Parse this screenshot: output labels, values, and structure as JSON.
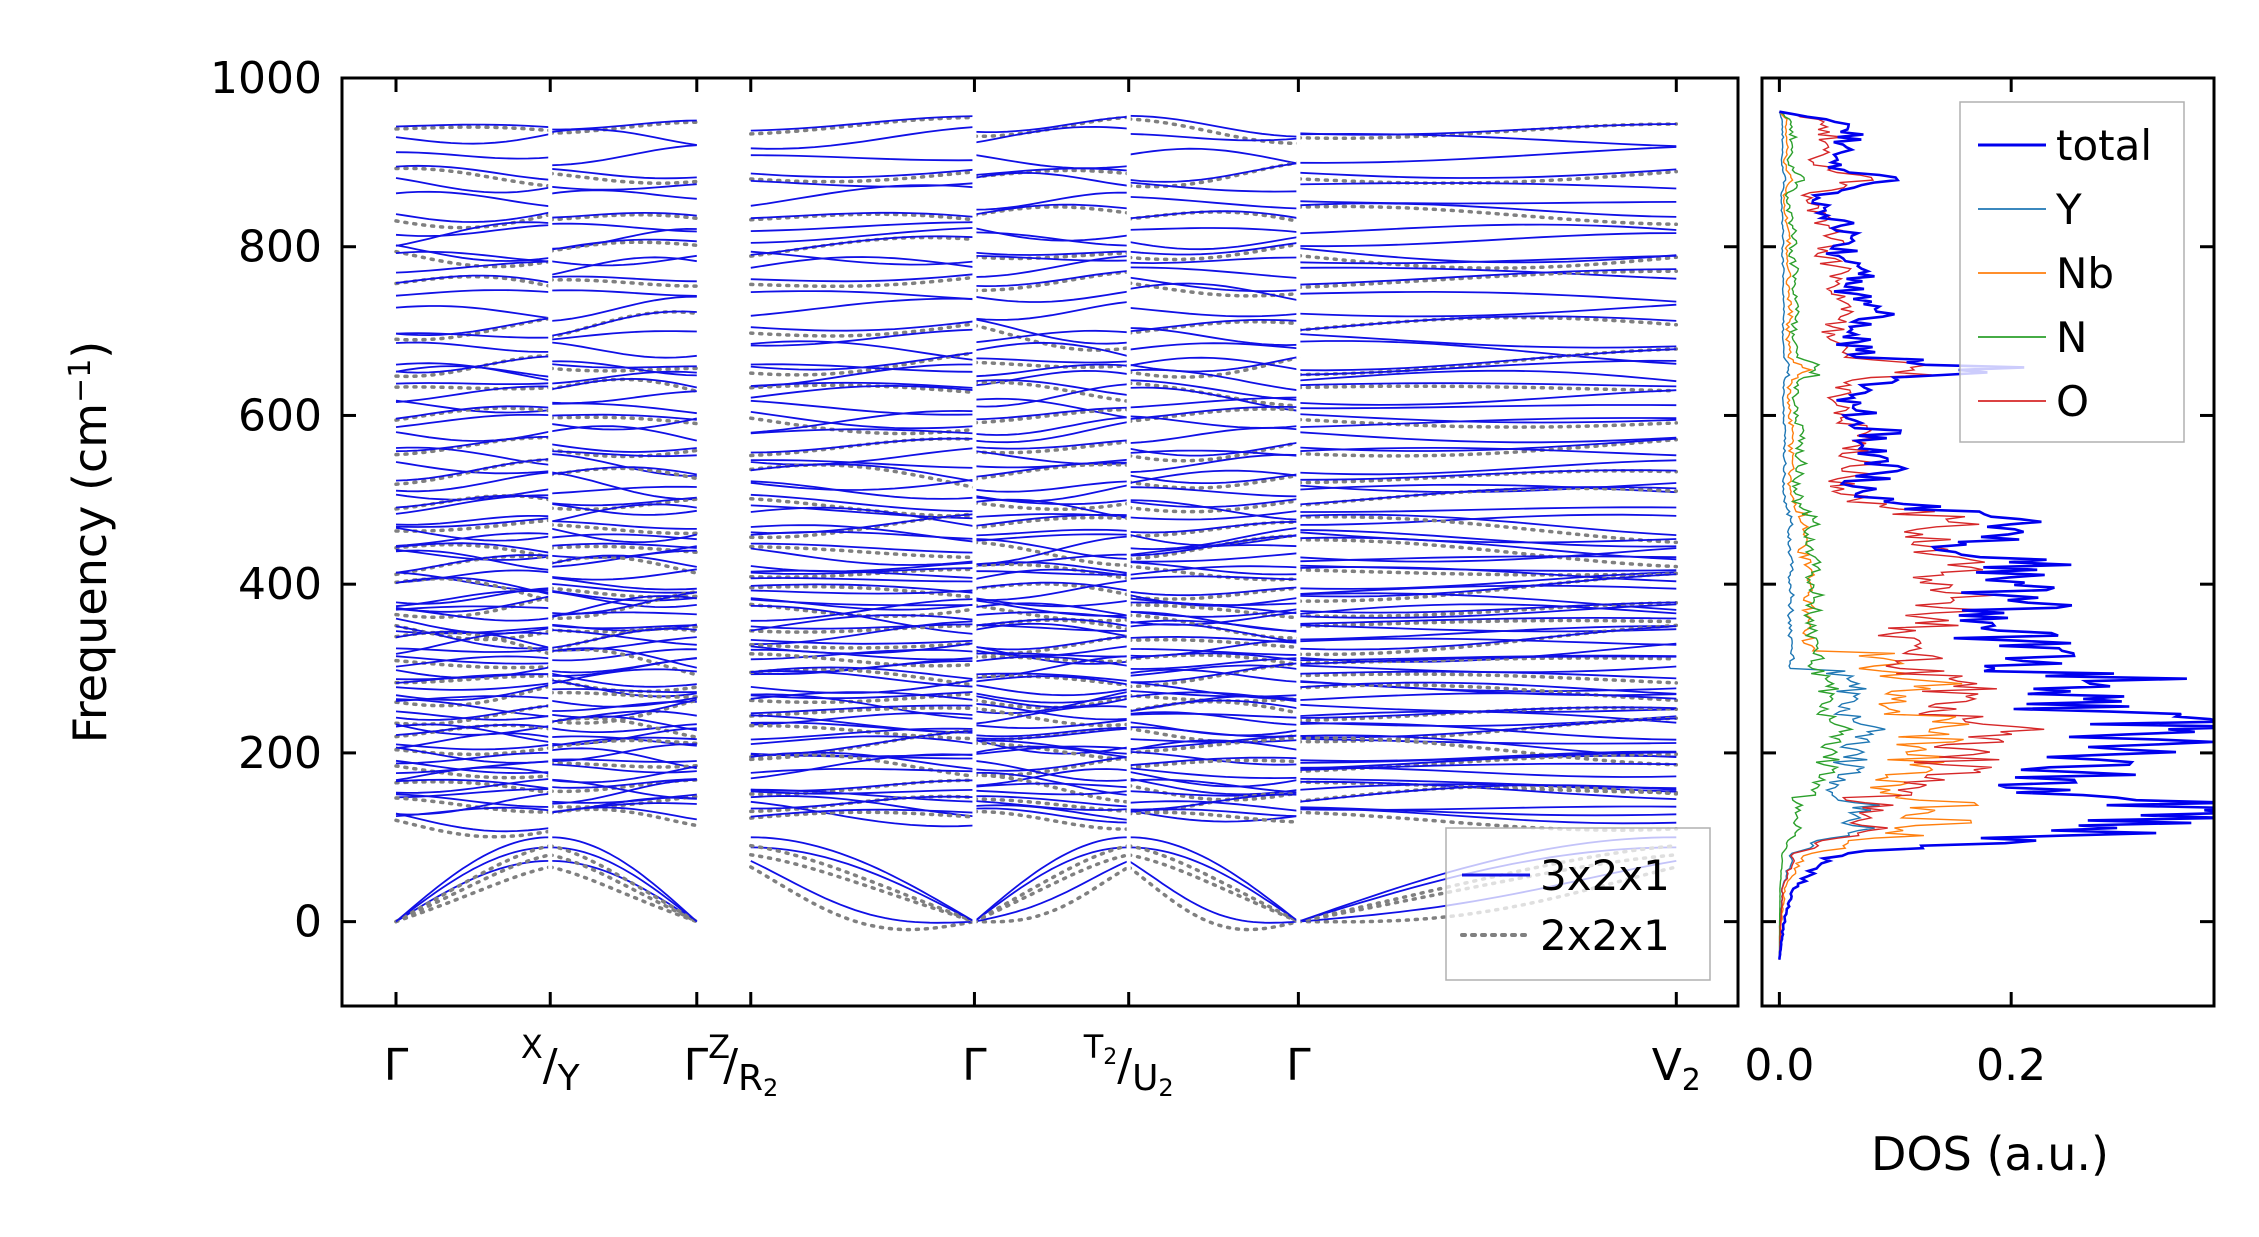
{
  "chart_data": [
    {
      "type": "line",
      "name": "phonon-dispersion",
      "ylabel": "Frequency (cm",
      "ylabel_sup": "−1",
      "ylabel_tail": ")",
      "ylim": [
        -100,
        1000
      ],
      "yticks": [
        0,
        200,
        400,
        600,
        800,
        1000
      ],
      "kpath": [
        {
          "pos": 0.0,
          "main": "Γ"
        },
        {
          "pos": 1.0,
          "sup": "X",
          "slash": "/",
          "main": "Y"
        },
        {
          "pos": 1.95,
          "main": "Γ",
          "sup": "Z"
        },
        {
          "pos": 2.3,
          "slash": "/",
          "main": "R",
          "sub": "2"
        },
        {
          "pos": 3.75,
          "main": "Γ"
        },
        {
          "pos": 4.75,
          "sup": "T",
          "sup_sub": "2",
          "slash": "/",
          "main": "U",
          "sub": "2"
        },
        {
          "pos": 5.85,
          "main": "Γ"
        },
        {
          "pos": 8.3,
          "main": "V",
          "sub": "2"
        }
      ],
      "segment_breaks": [
        [
          1.0,
          1.0
        ],
        [
          1.95,
          2.3
        ],
        [
          3.75,
          3.75
        ],
        [
          4.75,
          4.75
        ],
        [
          5.85,
          5.85
        ]
      ],
      "x_range": [
        -0.35,
        8.7
      ],
      "series": [
        {
          "name": "3x2x1",
          "color": "#1010e6",
          "style": "solid"
        },
        {
          "name": "2x2x1",
          "color": "#808080",
          "style": "dotted"
        }
      ],
      "flat_bands_cm1": [
        944,
        928,
        905,
        888,
        874,
        856,
        838,
        822,
        810,
        797,
        786,
        773,
        760,
        744,
        724,
        704,
        692,
        677,
        664,
        655,
        645,
        634,
        623,
        612,
        600,
        590,
        578,
        566,
        554,
        543,
        532,
        521,
        510,
        500,
        490,
        480,
        471,
        462,
        453,
        444,
        436,
        428,
        420,
        412,
        404,
        397,
        390,
        383,
        376,
        369,
        362,
        355,
        348,
        341,
        334,
        327,
        320,
        313,
        306,
        299,
        292,
        285,
        278,
        271,
        264,
        257,
        250,
        243,
        236,
        229,
        222,
        215,
        208,
        201,
        194,
        187,
        180,
        173,
        166,
        159,
        152,
        145,
        138,
        131,
        124
      ],
      "acoustic_branches_cm1": {
        "gamma": [
          0,
          0,
          0
        ],
        "zone_edge": [
          72,
          88,
          100
        ],
        "min_negative": -40
      }
    },
    {
      "type": "line",
      "name": "phonon-dos",
      "xlabel": "DOS (a.u.)",
      "xticks": [
        0.0,
        0.2
      ],
      "xtick_labels": [
        "0.0",
        "0.2"
      ],
      "xlim": [
        -0.015,
        0.375
      ],
      "ylim": [
        -100,
        1000
      ],
      "series": [
        {
          "name": "total",
          "color": "#0000ee",
          "width": 2.6
        },
        {
          "name": "Y",
          "color": "#1f77b4",
          "width": 1.4
        },
        {
          "name": "Nb",
          "color": "#ff7f0e",
          "width": 1.4
        },
        {
          "name": "N",
          "color": "#2ca02c",
          "width": 1.4
        },
        {
          "name": "O",
          "color": "#d62728",
          "width": 1.4
        }
      ],
      "peaks_total": [
        [
          -45,
          0.0
        ],
        [
          0,
          0.004
        ],
        [
          40,
          0.012
        ],
        [
          80,
          0.05
        ],
        [
          110,
          0.31
        ],
        [
          125,
          0.33
        ],
        [
          140,
          0.33
        ],
        [
          155,
          0.2
        ],
        [
          170,
          0.25
        ],
        [
          190,
          0.28
        ],
        [
          210,
          0.3
        ],
        [
          230,
          0.35
        ],
        [
          250,
          0.27
        ],
        [
          265,
          0.26
        ],
        [
          285,
          0.31
        ],
        [
          300,
          0.2
        ],
        [
          320,
          0.22
        ],
        [
          350,
          0.18
        ],
        [
          380,
          0.21
        ],
        [
          400,
          0.19
        ],
        [
          420,
          0.22
        ],
        [
          440,
          0.16
        ],
        [
          460,
          0.18
        ],
        [
          475,
          0.2
        ],
        [
          500,
          0.09
        ],
        [
          520,
          0.07
        ],
        [
          540,
          0.1
        ],
        [
          560,
          0.08
        ],
        [
          580,
          0.09
        ],
        [
          600,
          0.07
        ],
        [
          620,
          0.06
        ],
        [
          640,
          0.08
        ],
        [
          655,
          0.2
        ],
        [
          670,
          0.07
        ],
        [
          700,
          0.06
        ],
        [
          720,
          0.08
        ],
        [
          750,
          0.06
        ],
        [
          770,
          0.07
        ],
        [
          790,
          0.05
        ],
        [
          810,
          0.07
        ],
        [
          830,
          0.05
        ],
        [
          860,
          0.03
        ],
        [
          880,
          0.09
        ],
        [
          900,
          0.04
        ],
        [
          930,
          0.06
        ],
        [
          950,
          0.05
        ],
        [
          960,
          0.0
        ]
      ]
    }
  ],
  "legend_dispersion": {
    "entries": [
      "3x2x1",
      "2x2x1"
    ]
  },
  "legend_dos": {
    "entries": [
      "total",
      "Y",
      "Nb",
      "N",
      "O"
    ]
  }
}
